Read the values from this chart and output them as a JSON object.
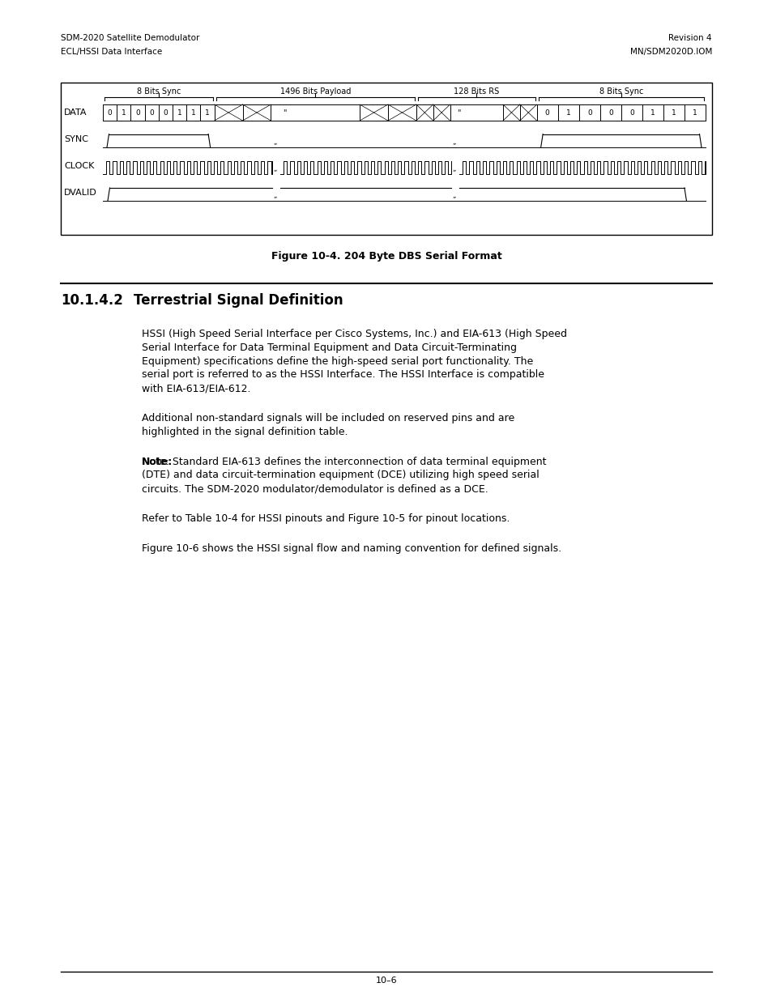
{
  "bg_color": "#ffffff",
  "text_color": "#000000",
  "page_width": 9.54,
  "page_height": 12.35,
  "header_left_line1": "SDM-2020 Satellite Demodulator",
  "header_left_line2": "ECL/HSSI Data Interface",
  "header_right_line1": "Revision 4",
  "header_right_line2": "MN/SDM2020D.IOM",
  "figure_caption": "Figure 10-4. 204 Byte DBS Serial Format",
  "section_number": "10.1.4.2",
  "section_title": "Terrestrial Signal Definition",
  "para1": "HSSI (High Speed Serial Interface per Cisco Systems, Inc.) and EIA-613 (High Speed Serial Interface for Data Terminal Equipment and Data Circuit-Terminating Equipment) specifications define the high-speed serial port functionality. The serial port is referred to as the HSSI Interface. The HSSI Interface is compatible with EIA-613/EIA-612.",
  "para2": "Additional non-standard signals will be included on reserved pins and are highlighted in the signal definition table.",
  "para3_bold": "Note:",
  "para3_rest": " Standard EIA-613 defines the interconnection of data terminal equipment (DTE) and data circuit-termination equipment (DCE) utilizing high speed serial circuits. The SDM-2020 modulator/demodulator is defined as a DCE.",
  "para4": "Refer to Table 10-4 for HSSI pinouts and Figure 10-5 for pinout locations.",
  "para5": "Figure 10-6 shows the HSSI signal flow and naming convention for defined signals.",
  "footer_line": "10–6",
  "diagram_labels": [
    "8 Bits Sync",
    "1496 Bits Payload",
    "128 Bits RS",
    "8 Bits Sync"
  ],
  "signal_labels": [
    "DATA",
    "SYNC",
    "CLOCK",
    "DVALID"
  ],
  "data_bits": [
    "0",
    "1",
    "0",
    "0",
    "0",
    "1",
    "1",
    "1"
  ],
  "sec_props": [
    0.185,
    0.335,
    0.2,
    0.28
  ]
}
